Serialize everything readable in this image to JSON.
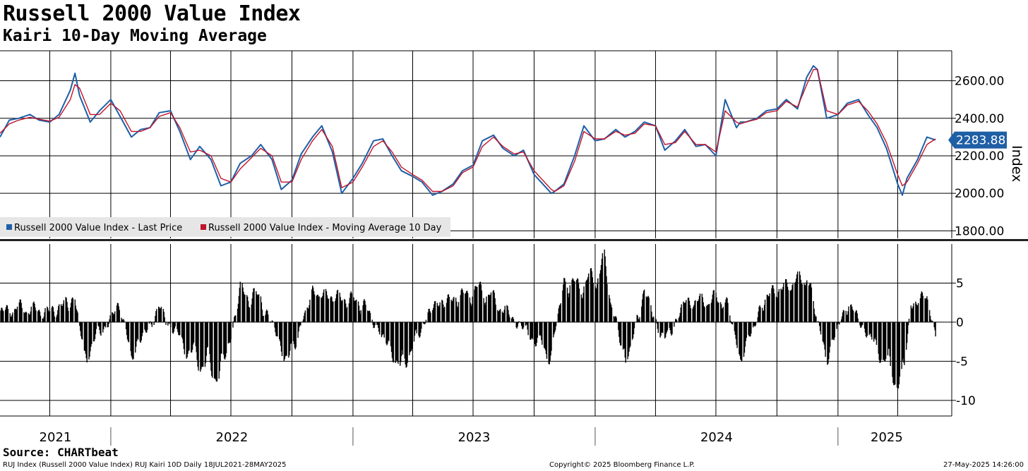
{
  "header": {
    "title": "Russell 2000 Value Index",
    "subtitle": "Kairi 10-Day Moving Average"
  },
  "footer": {
    "source": "Source: CHARTbeat",
    "description": "RUJ Index (Russell 2000 Value Index) RUJ Kairi 10D  Daily 18JUL2021-28MAY2025",
    "copyright": "Copyright© 2025 Bloomberg Finance L.P.",
    "timestamp": "27-May-2025 14:26:00"
  },
  "colors": {
    "price": "#1f5fa6",
    "moving_average": "#c0142c",
    "kairi_bars": "#000000",
    "grid": "#000000",
    "legend_bg": "#e6e6e6"
  },
  "chart_data": [
    {
      "type": "line",
      "ylabel": "Index",
      "ylim": [
        1760,
        2760
      ],
      "yticks": [
        "2600.00",
        "2400.00",
        "2200.00",
        "2000.00",
        "1800.00"
      ],
      "last_value_label": "2283.88",
      "legend": [
        "Russell 2000 Value Index - Last Price",
        "Russell 2000 Value Index - Moving Average 10 Day"
      ],
      "legend_position": "bottom-left",
      "grid": true,
      "x_years": [
        "2021",
        "2022",
        "2023",
        "2024",
        "2025"
      ],
      "series": [
        {
          "name": "Russell 2000 Value Index - Last Price",
          "x": [
            "2021-07-18",
            "2021-08-01",
            "2021-08-15",
            "2021-09-01",
            "2021-09-15",
            "2021-10-01",
            "2021-10-15",
            "2021-11-01",
            "2021-11-08",
            "2021-11-15",
            "2021-12-01",
            "2021-12-15",
            "2022-01-01",
            "2022-01-15",
            "2022-02-01",
            "2022-02-15",
            "2022-03-01",
            "2022-03-15",
            "2022-04-01",
            "2022-04-15",
            "2022-05-01",
            "2022-05-15",
            "2022-06-01",
            "2022-06-16",
            "2022-07-01",
            "2022-07-15",
            "2022-08-01",
            "2022-08-15",
            "2022-09-01",
            "2022-09-15",
            "2022-10-01",
            "2022-10-15",
            "2022-11-01",
            "2022-11-15",
            "2022-12-01",
            "2022-12-15",
            "2023-01-01",
            "2023-01-15",
            "2023-02-01",
            "2023-02-15",
            "2023-03-01",
            "2023-03-15",
            "2023-04-01",
            "2023-04-15",
            "2023-05-01",
            "2023-05-15",
            "2023-06-01",
            "2023-06-15",
            "2023-07-01",
            "2023-07-15",
            "2023-08-01",
            "2023-08-15",
            "2023-09-01",
            "2023-09-15",
            "2023-10-01",
            "2023-10-27",
            "2023-11-01",
            "2023-11-15",
            "2023-12-01",
            "2023-12-15",
            "2024-01-01",
            "2024-01-15",
            "2024-02-01",
            "2024-02-15",
            "2024-03-01",
            "2024-03-15",
            "2024-04-01",
            "2024-04-15",
            "2024-05-01",
            "2024-05-15",
            "2024-06-01",
            "2024-06-15",
            "2024-07-01",
            "2024-07-15",
            "2024-08-01",
            "2024-08-07",
            "2024-08-15",
            "2024-09-01",
            "2024-09-15",
            "2024-10-01",
            "2024-10-15",
            "2024-11-01",
            "2024-11-15",
            "2024-11-25",
            "2024-12-01",
            "2024-12-15",
            "2025-01-01",
            "2025-01-15",
            "2025-02-01",
            "2025-02-15",
            "2025-03-01",
            "2025-03-15",
            "2025-04-01",
            "2025-04-08",
            "2025-04-15",
            "2025-05-01",
            "2025-05-15",
            "2025-05-28"
          ],
          "values": [
            2300,
            2390,
            2400,
            2420,
            2390,
            2380,
            2420,
            2550,
            2640,
            2520,
            2380,
            2440,
            2500,
            2410,
            2300,
            2340,
            2350,
            2430,
            2440,
            2330,
            2180,
            2250,
            2180,
            2040,
            2060,
            2160,
            2200,
            2260,
            2180,
            2020,
            2070,
            2210,
            2300,
            2360,
            2220,
            2000,
            2080,
            2160,
            2280,
            2290,
            2200,
            2120,
            2090,
            2060,
            1990,
            2010,
            2050,
            2120,
            2150,
            2280,
            2310,
            2240,
            2200,
            2230,
            2100,
            2000,
            2010,
            2050,
            2200,
            2360,
            2280,
            2290,
            2340,
            2300,
            2330,
            2380,
            2360,
            2230,
            2280,
            2340,
            2250,
            2260,
            2200,
            2500,
            2350,
            2380,
            2380,
            2400,
            2440,
            2450,
            2500,
            2450,
            2620,
            2680,
            2660,
            2400,
            2420,
            2480,
            2500,
            2420,
            2350,
            2240,
            2050,
            1990,
            2080,
            2180,
            2300,
            2284
          ]
        },
        {
          "name": "Russell 2000 Value Index - Moving Average 10 Day",
          "x": [
            "2021-07-18",
            "2021-08-01",
            "2021-08-15",
            "2021-09-01",
            "2021-09-15",
            "2021-10-01",
            "2021-10-15",
            "2021-11-01",
            "2021-11-08",
            "2021-11-15",
            "2021-12-01",
            "2021-12-15",
            "2022-01-01",
            "2022-01-15",
            "2022-02-01",
            "2022-02-15",
            "2022-03-01",
            "2022-03-15",
            "2022-04-01",
            "2022-04-15",
            "2022-05-01",
            "2022-05-15",
            "2022-06-01",
            "2022-06-16",
            "2022-07-01",
            "2022-07-15",
            "2022-08-01",
            "2022-08-15",
            "2022-09-01",
            "2022-09-15",
            "2022-10-01",
            "2022-10-15",
            "2022-11-01",
            "2022-11-15",
            "2022-12-01",
            "2022-12-15",
            "2023-01-01",
            "2023-01-15",
            "2023-02-01",
            "2023-02-15",
            "2023-03-01",
            "2023-03-15",
            "2023-04-01",
            "2023-04-15",
            "2023-05-01",
            "2023-05-15",
            "2023-06-01",
            "2023-06-15",
            "2023-07-01",
            "2023-07-15",
            "2023-08-01",
            "2023-08-15",
            "2023-09-01",
            "2023-09-15",
            "2023-10-01",
            "2023-10-27",
            "2023-11-01",
            "2023-11-15",
            "2023-12-01",
            "2023-12-15",
            "2024-01-01",
            "2024-01-15",
            "2024-02-01",
            "2024-02-15",
            "2024-03-01",
            "2024-03-15",
            "2024-04-01",
            "2024-04-15",
            "2024-05-01",
            "2024-05-15",
            "2024-06-01",
            "2024-06-15",
            "2024-07-01",
            "2024-07-15",
            "2024-08-01",
            "2024-08-07",
            "2024-08-15",
            "2024-09-01",
            "2024-09-15",
            "2024-10-01",
            "2024-10-15",
            "2024-11-01",
            "2024-11-15",
            "2024-11-25",
            "2024-12-01",
            "2024-12-15",
            "2025-01-01",
            "2025-01-15",
            "2025-02-01",
            "2025-02-15",
            "2025-03-01",
            "2025-03-15",
            "2025-04-01",
            "2025-04-08",
            "2025-04-15",
            "2025-05-01",
            "2025-05-15",
            "2025-05-28"
          ],
          "values": [
            2320,
            2370,
            2390,
            2405,
            2395,
            2385,
            2405,
            2500,
            2580,
            2560,
            2420,
            2420,
            2480,
            2440,
            2330,
            2330,
            2350,
            2410,
            2430,
            2350,
            2220,
            2230,
            2200,
            2080,
            2060,
            2130,
            2190,
            2240,
            2200,
            2060,
            2060,
            2180,
            2280,
            2340,
            2250,
            2030,
            2060,
            2140,
            2250,
            2280,
            2220,
            2140,
            2100,
            2070,
            2010,
            2010,
            2040,
            2110,
            2140,
            2250,
            2300,
            2250,
            2210,
            2220,
            2120,
            2020,
            2010,
            2040,
            2170,
            2330,
            2290,
            2290,
            2330,
            2310,
            2320,
            2370,
            2360,
            2260,
            2270,
            2330,
            2260,
            2260,
            2220,
            2440,
            2380,
            2370,
            2380,
            2395,
            2430,
            2440,
            2490,
            2460,
            2580,
            2660,
            2660,
            2440,
            2420,
            2470,
            2490,
            2440,
            2370,
            2270,
            2100,
            2040,
            2060,
            2160,
            2260,
            2290
          ]
        }
      ]
    },
    {
      "type": "bar",
      "ylim": [
        -12,
        10
      ],
      "yticks": [
        "5",
        "0",
        "-5",
        "-10"
      ],
      "grid": true,
      "x_years": [
        "2021",
        "2022",
        "2023",
        "2024",
        "2025"
      ],
      "series": [
        {
          "name": "RUJ Kairi 10D",
          "x": [
            "2021-07-18",
            "2021-08-15",
            "2021-10-01",
            "2021-11-08",
            "2021-11-22",
            "2021-12-01",
            "2022-01-15",
            "2022-02-01",
            "2022-03-15",
            "2022-05-01",
            "2022-06-16",
            "2022-07-15",
            "2022-08-15",
            "2022-09-25",
            "2022-11-01",
            "2023-01-15",
            "2023-03-15",
            "2023-05-01",
            "2023-07-15",
            "2023-08-15",
            "2023-10-27",
            "2023-11-15",
            "2023-12-15",
            "2024-01-15",
            "2024-02-15",
            "2024-03-15",
            "2024-04-15",
            "2024-05-15",
            "2024-07-15",
            "2024-08-07",
            "2024-09-15",
            "2024-11-15",
            "2024-12-15",
            "2025-01-15",
            "2025-03-01",
            "2025-04-08",
            "2025-04-20",
            "2025-05-15",
            "2025-05-28"
          ],
          "values": [
            1.5,
            2.2,
            1.5,
            3.6,
            -6.0,
            -3.5,
            2.5,
            -5.0,
            2.0,
            -4.8,
            -8.0,
            4.5,
            3.5,
            -6.0,
            4.5,
            3.0,
            -7.0,
            2.5,
            5.0,
            2.0,
            -5.0,
            6.0,
            5.5,
            8.5,
            -6.5,
            4.5,
            -3.0,
            3.0,
            3.5,
            -5.5,
            4.0,
            7.0,
            -5.5,
            3.0,
            -4.0,
            -9.8,
            2.5,
            4.0,
            -2.5
          ]
        }
      ]
    }
  ]
}
